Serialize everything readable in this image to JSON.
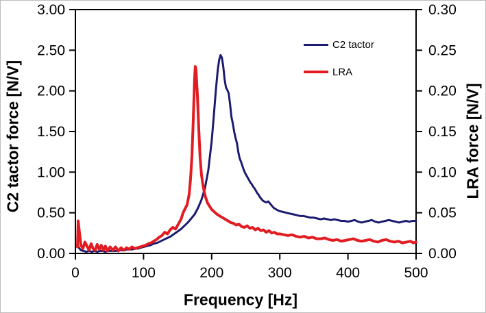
{
  "figure": {
    "background": "#ffffff",
    "border_color": "#bdbdbd",
    "axis_color": "#000000"
  },
  "chart_data": {
    "type": "line",
    "title": "",
    "xlabel": "Frequency [Hz]",
    "ylabel_left": "C2 tactor force [N/V]",
    "ylabel_right": "LRA force [N/V]",
    "x_range": [
      0,
      500
    ],
    "y_left_range": [
      0,
      3
    ],
    "y_right_range": [
      0,
      0.3
    ],
    "grid": false,
    "legend_position": "inside-upper-right",
    "x_ticks": {
      "values": [
        0,
        100,
        200,
        300,
        400,
        500
      ],
      "labels": [
        "0",
        "100",
        "200",
        "300",
        "400",
        "500"
      ]
    },
    "y_left_ticks": {
      "values": [
        0,
        0.5,
        1,
        1.5,
        2,
        2.5,
        3
      ],
      "labels": [
        "0.00",
        "0.50",
        "1.00",
        "1.50",
        "2.00",
        "2.50",
        "3.00"
      ]
    },
    "y_right_ticks": {
      "values": [
        0,
        0.05,
        0.1,
        0.15,
        0.2,
        0.25,
        0.3
      ],
      "labels": [
        "0.00",
        "0.05",
        "0.10",
        "0.15",
        "0.20",
        "0.25",
        "0.30"
      ]
    },
    "series": [
      {
        "name": "C2 tactor",
        "color": "#1b1b6f",
        "axis": "left",
        "line_width": 3,
        "points": [
          [
            3,
            0.1
          ],
          [
            5,
            0.07
          ],
          [
            8,
            0.04
          ],
          [
            12,
            0.03
          ],
          [
            16,
            0.02
          ],
          [
            20,
            0.03
          ],
          [
            24,
            0.02
          ],
          [
            28,
            0.03
          ],
          [
            32,
            0.02
          ],
          [
            36,
            0.03
          ],
          [
            40,
            0.03
          ],
          [
            44,
            0.02
          ],
          [
            48,
            0.03
          ],
          [
            52,
            0.03
          ],
          [
            56,
            0.03
          ],
          [
            60,
            0.03
          ],
          [
            64,
            0.04
          ],
          [
            68,
            0.04
          ],
          [
            72,
            0.04
          ],
          [
            76,
            0.05
          ],
          [
            80,
            0.05
          ],
          [
            84,
            0.05
          ],
          [
            88,
            0.06
          ],
          [
            92,
            0.06
          ],
          [
            96,
            0.07
          ],
          [
            100,
            0.08
          ],
          [
            105,
            0.09
          ],
          [
            110,
            0.1
          ],
          [
            115,
            0.12
          ],
          [
            120,
            0.13
          ],
          [
            125,
            0.15
          ],
          [
            130,
            0.17
          ],
          [
            135,
            0.19
          ],
          [
            140,
            0.21
          ],
          [
            145,
            0.24
          ],
          [
            150,
            0.27
          ],
          [
            155,
            0.3
          ],
          [
            160,
            0.34
          ],
          [
            165,
            0.38
          ],
          [
            170,
            0.43
          ],
          [
            175,
            0.48
          ],
          [
            180,
            0.56
          ],
          [
            185,
            0.66
          ],
          [
            190,
            0.8
          ],
          [
            195,
            1.02
          ],
          [
            200,
            1.38
          ],
          [
            203,
            1.68
          ],
          [
            206,
            2.0
          ],
          [
            209,
            2.26
          ],
          [
            211,
            2.38
          ],
          [
            213,
            2.44
          ],
          [
            215,
            2.41
          ],
          [
            217,
            2.3
          ],
          [
            219,
            2.14
          ],
          [
            221,
            2.04
          ],
          [
            223,
            2.01
          ],
          [
            225,
            1.97
          ],
          [
            227,
            1.84
          ],
          [
            229,
            1.68
          ],
          [
            231,
            1.6
          ],
          [
            233,
            1.5
          ],
          [
            235,
            1.42
          ],
          [
            237,
            1.36
          ],
          [
            239,
            1.25
          ],
          [
            241,
            1.17
          ],
          [
            243,
            1.13
          ],
          [
            245,
            1.08
          ],
          [
            247,
            1.03
          ],
          [
            249,
            0.99
          ],
          [
            251,
            0.96
          ],
          [
            253,
            0.93
          ],
          [
            255,
            0.9
          ],
          [
            257,
            0.87
          ],
          [
            259,
            0.85
          ],
          [
            261,
            0.82
          ],
          [
            263,
            0.8
          ],
          [
            265,
            0.77
          ],
          [
            267,
            0.74
          ],
          [
            269,
            0.72
          ],
          [
            271,
            0.69
          ],
          [
            273,
            0.67
          ],
          [
            275,
            0.65
          ],
          [
            277,
            0.64
          ],
          [
            279,
            0.63
          ],
          [
            281,
            0.63
          ],
          [
            283,
            0.64
          ],
          [
            285,
            0.62
          ],
          [
            287,
            0.6
          ],
          [
            289,
            0.58
          ],
          [
            291,
            0.56
          ],
          [
            293,
            0.55
          ],
          [
            295,
            0.54
          ],
          [
            297,
            0.53
          ],
          [
            300,
            0.52
          ],
          [
            305,
            0.51
          ],
          [
            310,
            0.5
          ],
          [
            315,
            0.49
          ],
          [
            320,
            0.48
          ],
          [
            325,
            0.47
          ],
          [
            330,
            0.46
          ],
          [
            335,
            0.46
          ],
          [
            340,
            0.45
          ],
          [
            345,
            0.44
          ],
          [
            350,
            0.44
          ],
          [
            355,
            0.43
          ],
          [
            360,
            0.42
          ],
          [
            365,
            0.43
          ],
          [
            370,
            0.42
          ],
          [
            375,
            0.41
          ],
          [
            380,
            0.42
          ],
          [
            385,
            0.41
          ],
          [
            390,
            0.4
          ],
          [
            395,
            0.4
          ],
          [
            400,
            0.39
          ],
          [
            405,
            0.4
          ],
          [
            410,
            0.41
          ],
          [
            415,
            0.39
          ],
          [
            420,
            0.38
          ],
          [
            425,
            0.39
          ],
          [
            430,
            0.4
          ],
          [
            435,
            0.41
          ],
          [
            440,
            0.39
          ],
          [
            445,
            0.38
          ],
          [
            450,
            0.39
          ],
          [
            455,
            0.4
          ],
          [
            460,
            0.41
          ],
          [
            465,
            0.4
          ],
          [
            470,
            0.39
          ],
          [
            475,
            0.38
          ],
          [
            480,
            0.39
          ],
          [
            485,
            0.4
          ],
          [
            490,
            0.39
          ],
          [
            495,
            0.4
          ],
          [
            500,
            0.4
          ]
        ]
      },
      {
        "name": "LRA",
        "color": "#e11c22",
        "axis": "right",
        "line_width": 4,
        "points": [
          [
            3,
            0.008
          ],
          [
            4,
            0.04
          ],
          [
            6,
            0.025
          ],
          [
            8,
            0.01
          ],
          [
            11,
            0.006
          ],
          [
            14,
            0.014
          ],
          [
            17,
            0.009
          ],
          [
            20,
            0.004
          ],
          [
            23,
            0.012
          ],
          [
            26,
            0.006
          ],
          [
            29,
            0.004
          ],
          [
            32,
            0.011
          ],
          [
            35,
            0.005
          ],
          [
            38,
            0.01
          ],
          [
            41,
            0.004
          ],
          [
            44,
            0.009
          ],
          [
            47,
            0.003
          ],
          [
            51,
            0.008
          ],
          [
            55,
            0.004
          ],
          [
            59,
            0.008
          ],
          [
            63,
            0.003
          ],
          [
            67,
            0.007
          ],
          [
            71,
            0.004
          ],
          [
            75,
            0.007
          ],
          [
            79,
            0.005
          ],
          [
            83,
            0.008
          ],
          [
            87,
            0.006
          ],
          [
            91,
            0.007
          ],
          [
            95,
            0.008
          ],
          [
            99,
            0.009
          ],
          [
            103,
            0.01
          ],
          [
            107,
            0.012
          ],
          [
            111,
            0.013
          ],
          [
            115,
            0.015
          ],
          [
            119,
            0.017
          ],
          [
            123,
            0.02
          ],
          [
            127,
            0.022
          ],
          [
            131,
            0.026
          ],
          [
            135,
            0.024
          ],
          [
            139,
            0.029
          ],
          [
            143,
            0.032
          ],
          [
            147,
            0.03
          ],
          [
            151,
            0.036
          ],
          [
            155,
            0.042
          ],
          [
            158,
            0.05
          ],
          [
            161,
            0.055
          ],
          [
            164,
            0.06
          ],
          [
            167,
            0.073
          ],
          [
            169,
            0.092
          ],
          [
            171,
            0.12
          ],
          [
            173,
            0.165
          ],
          [
            175,
            0.215
          ],
          [
            176,
            0.23
          ],
          [
            177,
            0.226
          ],
          [
            179,
            0.196
          ],
          [
            181,
            0.155
          ],
          [
            183,
            0.118
          ],
          [
            185,
            0.097
          ],
          [
            187,
            0.085
          ],
          [
            189,
            0.076
          ],
          [
            191,
            0.069
          ],
          [
            194,
            0.062
          ],
          [
            197,
            0.058
          ],
          [
            200,
            0.054
          ],
          [
            204,
            0.051
          ],
          [
            208,
            0.048
          ],
          [
            212,
            0.046
          ],
          [
            216,
            0.044
          ],
          [
            220,
            0.042
          ],
          [
            224,
            0.04
          ],
          [
            228,
            0.038
          ],
          [
            232,
            0.037
          ],
          [
            236,
            0.035
          ],
          [
            240,
            0.036
          ],
          [
            244,
            0.033
          ],
          [
            248,
            0.032
          ],
          [
            252,
            0.034
          ],
          [
            256,
            0.031
          ],
          [
            260,
            0.032
          ],
          [
            264,
            0.029
          ],
          [
            268,
            0.031
          ],
          [
            272,
            0.028
          ],
          [
            276,
            0.029
          ],
          [
            280,
            0.026
          ],
          [
            284,
            0.028
          ],
          [
            288,
            0.025
          ],
          [
            292,
            0.026
          ],
          [
            296,
            0.024
          ],
          [
            300,
            0.024
          ],
          [
            306,
            0.023
          ],
          [
            312,
            0.022
          ],
          [
            318,
            0.023
          ],
          [
            324,
            0.021
          ],
          [
            330,
            0.02
          ],
          [
            336,
            0.021
          ],
          [
            342,
            0.019
          ],
          [
            348,
            0.02
          ],
          [
            354,
            0.018
          ],
          [
            360,
            0.018
          ],
          [
            366,
            0.019
          ],
          [
            372,
            0.017
          ],
          [
            378,
            0.016
          ],
          [
            384,
            0.017
          ],
          [
            390,
            0.015
          ],
          [
            396,
            0.016
          ],
          [
            402,
            0.017
          ],
          [
            408,
            0.018
          ],
          [
            414,
            0.016
          ],
          [
            420,
            0.015
          ],
          [
            426,
            0.016
          ],
          [
            432,
            0.017
          ],
          [
            438,
            0.015
          ],
          [
            444,
            0.014
          ],
          [
            450,
            0.016
          ],
          [
            456,
            0.017
          ],
          [
            462,
            0.015
          ],
          [
            468,
            0.014
          ],
          [
            474,
            0.015
          ],
          [
            480,
            0.013
          ],
          [
            486,
            0.014
          ],
          [
            492,
            0.015
          ],
          [
            496,
            0.013
          ],
          [
            500,
            0.014
          ]
        ]
      }
    ]
  },
  "legend": {
    "items": [
      {
        "label": "C2 tactor",
        "color": "#1b1b6f"
      },
      {
        "label": "LRA",
        "color": "#e11c22"
      }
    ]
  }
}
